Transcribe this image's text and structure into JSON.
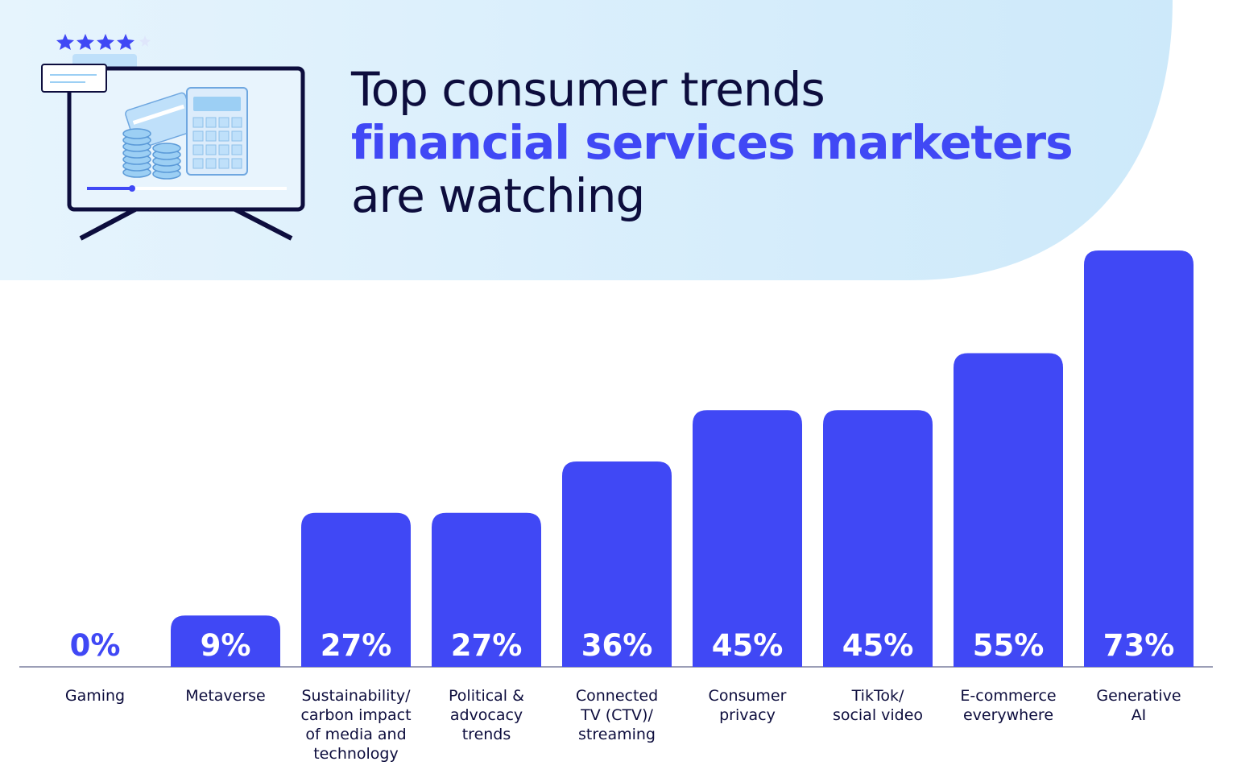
{
  "header": {
    "title_line1": "Top consumer trends",
    "title_line2": "financial services marketers",
    "title_line3": "are watching"
  },
  "illustration": {
    "icon": "monitor-finance-icon",
    "rating_stars": 4
  },
  "colors": {
    "bar": "#4048f5",
    "text_dark": "#0d0d3d",
    "header_bg": "#d7eefb",
    "axis": "#7a7f9e"
  },
  "chart_data": {
    "type": "bar",
    "title": "Top consumer trends financial services marketers are watching",
    "ylim": [
      0,
      73
    ],
    "grid": false,
    "legend": "none",
    "categories": [
      [
        "Gaming"
      ],
      [
        "Metaverse"
      ],
      [
        "Sustainability/",
        "carbon impact",
        "of media and",
        "technology"
      ],
      [
        "Political &",
        "advocacy",
        "trends"
      ],
      [
        "Connected",
        "TV (CTV)/",
        "streaming"
      ],
      [
        "Consumer",
        "privacy"
      ],
      [
        "TikTok/",
        "social video"
      ],
      [
        "E-commerce",
        "everywhere"
      ],
      [
        "Generative",
        "AI"
      ]
    ],
    "values": [
      0,
      9,
      27,
      27,
      36,
      45,
      45,
      55,
      73
    ],
    "value_labels": [
      "0%",
      "9%",
      "27%",
      "27%",
      "36%",
      "45%",
      "45%",
      "55%",
      "73%"
    ]
  }
}
